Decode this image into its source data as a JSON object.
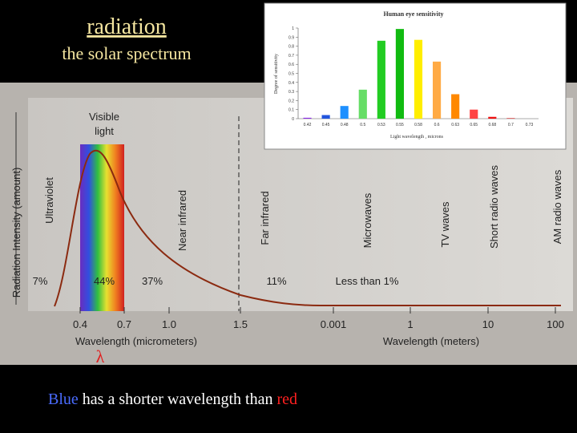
{
  "slide": {
    "title": "radiation",
    "subtitle": "the solar spectrum",
    "symbol": "λ",
    "caption": {
      "blue": "Blue",
      "middle": " has a shorter wavelength than ",
      "red": "red"
    }
  },
  "diagram": {
    "y_axis_label": "Radiation Intensity (amount)",
    "visible_label": [
      "Visible",
      "light"
    ],
    "bands": [
      "Ultraviolet",
      "Near infrared",
      "Far infrared",
      "Microwaves",
      "TV waves",
      "Short radio waves",
      "AM radio waves"
    ],
    "shares": [
      "7%",
      "44%",
      "37%",
      "11%",
      "Less than 1%"
    ],
    "x_tick_labels": [
      "0.4",
      "0.7",
      "1.0",
      "1.5",
      "0.001",
      "1",
      "10",
      "100"
    ],
    "x_axis_labels": [
      "Wavelength (micrometers)",
      "Wavelength (meters)"
    ]
  },
  "chart_data": {
    "type": "bar",
    "title": "Human eye sensitivity",
    "y_label": "Degree of sensitivity",
    "x_label": "Light wavelength , microns",
    "categories": [
      "0.42",
      "0.45",
      "0.48",
      "0.5",
      "0.53",
      "0.55",
      "0.58",
      "0.6",
      "0.63",
      "0.65",
      "0.68",
      "0.7",
      "0.73"
    ],
    "values": [
      0.01,
      0.04,
      0.14,
      0.32,
      0.86,
      0.99,
      0.87,
      0.63,
      0.27,
      0.1,
      0.02,
      0.005,
      0
    ],
    "colors": [
      "#8a2be2",
      "#2255dd",
      "#1e90ff",
      "#66dd66",
      "#22cc22",
      "#11bb11",
      "#ffee00",
      "#ffaa44",
      "#ff8800",
      "#ff4444",
      "#ee1111",
      "#cc0000",
      "#bb0000"
    ],
    "ylim": [
      0,
      1
    ],
    "yticks": [
      0,
      0.1,
      0.2,
      0.3,
      0.4,
      0.5,
      0.6,
      0.7,
      0.8,
      0.9,
      1
    ]
  }
}
